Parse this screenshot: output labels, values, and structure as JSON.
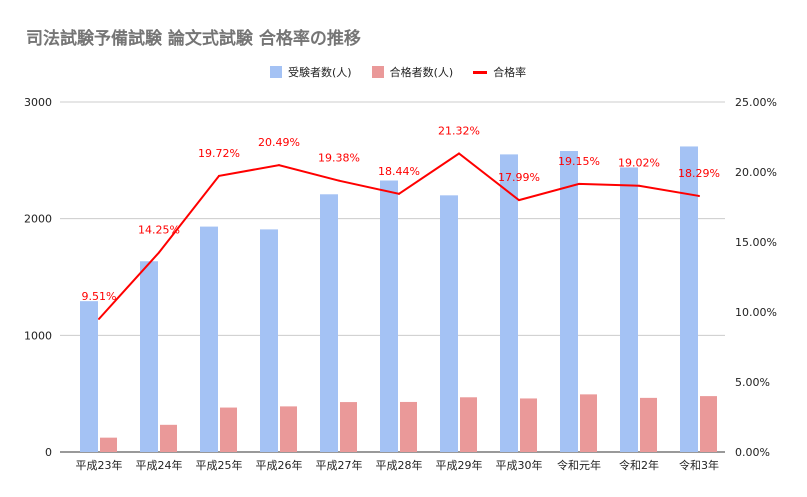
{
  "chart_data": {
    "type": "bar+line",
    "title": "司法試験予備試験 論文式試験 合格率の推移",
    "categories": [
      "平成23年",
      "平成24年",
      "平成25年",
      "平成26年",
      "平成27年",
      "平成28年",
      "平成29年",
      "平成30年",
      "令和元年",
      "令和2年",
      "令和3年"
    ],
    "series": [
      {
        "name": "受験者数(人)",
        "type": "bar",
        "axis": "left",
        "color": "#a4c2f4",
        "values": [
          1293,
          1635,
          1932,
          1908,
          2209,
          2327,
          2200,
          2551,
          2580,
          2439,
          2619
        ]
      },
      {
        "name": "合格者数(人)",
        "type": "bar",
        "axis": "left",
        "color": "#ea9999",
        "values": [
          123,
          233,
          381,
          391,
          428,
          429,
          469,
          459,
          494,
          464,
          479
        ]
      },
      {
        "name": "合格率",
        "type": "line",
        "axis": "right",
        "color": "#ff0000",
        "values": [
          9.51,
          14.25,
          19.72,
          20.49,
          19.38,
          18.44,
          21.32,
          17.99,
          19.15,
          19.02,
          18.29
        ],
        "labels": [
          "9.51%",
          "14.25%",
          "19.72%",
          "20.49%",
          "19.38%",
          "18.44%",
          "21.32%",
          "17.99%",
          "19.15%",
          "19.02%",
          "18.29%"
        ]
      }
    ],
    "left_axis": {
      "ylim": [
        0,
        3000
      ],
      "ticks": [
        "0",
        "1000",
        "2000",
        "3000"
      ]
    },
    "right_axis": {
      "ylim": [
        0,
        25
      ],
      "ticks": [
        "0.00%",
        "5.00%",
        "10.00%",
        "15.00%",
        "20.00%",
        "25.00%"
      ]
    },
    "grid": true,
    "legend": "top-center"
  }
}
